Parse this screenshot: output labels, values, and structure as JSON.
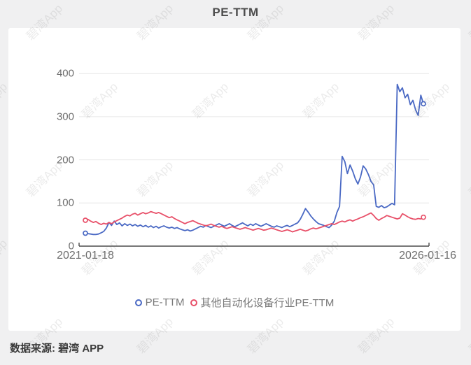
{
  "header": {
    "title": "PE-TTM"
  },
  "footer": {
    "source_label": "数据来源: 碧湾 APP"
  },
  "watermark": {
    "text": "碧湾App"
  },
  "colors": {
    "background": "#f0f0f1",
    "card": "#ffffff",
    "axis": "#4a4a4a",
    "grid": "#e6e6e6",
    "tick_label": "#6e6e6e",
    "series_blue": "#4a69c4",
    "series_red": "#e85069"
  },
  "legend": [
    {
      "label": "PE-TTM",
      "color": "#4a69c4"
    },
    {
      "label": "其他自动化设备行业PE-TTM",
      "color": "#e85069"
    }
  ],
  "chart_data": {
    "type": "line",
    "title": "PE-TTM",
    "x_start": "2021-01-18",
    "x_end": "2026-01-16",
    "xlabel": "",
    "ylabel": "",
    "ylim": [
      0,
      400
    ],
    "yticks": [
      0,
      100,
      200,
      300,
      400
    ],
    "ytick_labels": [
      "0",
      "100",
      "200",
      "300",
      "400"
    ],
    "grid": true,
    "legend_position": "bottom",
    "series": [
      {
        "name": "PE-TTM",
        "color": "#4a69c4",
        "values": [
          30,
          29,
          28,
          27,
          27,
          28,
          31,
          34,
          42,
          55,
          48,
          58,
          50,
          54,
          47,
          52,
          48,
          51,
          47,
          50,
          46,
          49,
          45,
          48,
          44,
          47,
          43,
          46,
          42,
          45,
          47,
          44,
          42,
          44,
          41,
          43,
          40,
          38,
          36,
          38,
          35,
          37,
          40,
          43,
          46,
          44,
          48,
          45,
          43,
          46,
          49,
          52,
          49,
          46,
          49,
          52,
          48,
          45,
          48,
          51,
          54,
          50,
          47,
          51,
          48,
          52,
          49,
          46,
          49,
          52,
          49,
          46,
          44,
          47,
          45,
          43,
          46,
          48,
          45,
          48,
          51,
          54,
          62,
          74,
          87,
          79,
          70,
          63,
          57,
          52,
          50,
          48,
          45,
          43,
          49,
          58,
          78,
          92,
          208,
          196,
          168,
          188,
          174,
          156,
          144,
          160,
          186,
          179,
          166,
          150,
          142,
          92,
          90,
          94,
          89,
          91,
          95,
          99,
          96,
          375,
          358,
          367,
          344,
          352,
          328,
          338,
          316,
          303,
          350,
          330
        ]
      },
      {
        "name": "其他自动化设备行业PE-TTM",
        "color": "#e85069",
        "values": [
          60,
          62,
          58,
          55,
          57,
          53,
          50,
          53,
          51,
          55,
          52,
          56,
          59,
          62,
          65,
          69,
          72,
          70,
          74,
          76,
          72,
          75,
          78,
          75,
          77,
          80,
          78,
          76,
          78,
          75,
          72,
          69,
          66,
          68,
          64,
          61,
          58,
          55,
          52,
          55,
          57,
          59,
          56,
          53,
          51,
          49,
          47,
          49,
          51,
          48,
          46,
          44,
          46,
          43,
          41,
          43,
          45,
          43,
          41,
          39,
          41,
          43,
          41,
          39,
          37,
          39,
          41,
          39,
          37,
          38,
          40,
          42,
          40,
          38,
          36,
          34,
          36,
          38,
          36,
          33,
          35,
          37,
          39,
          37,
          35,
          37,
          40,
          42,
          40,
          42,
          44,
          46,
          48,
          50,
          52,
          50,
          53,
          56,
          58,
          56,
          59,
          61,
          58,
          61,
          63,
          66,
          68,
          71,
          74,
          77,
          71,
          64,
          60,
          64,
          67,
          71,
          69,
          67,
          65,
          63,
          65,
          75,
          72,
          68,
          65,
          63,
          62,
          64,
          63,
          67
        ]
      }
    ]
  }
}
